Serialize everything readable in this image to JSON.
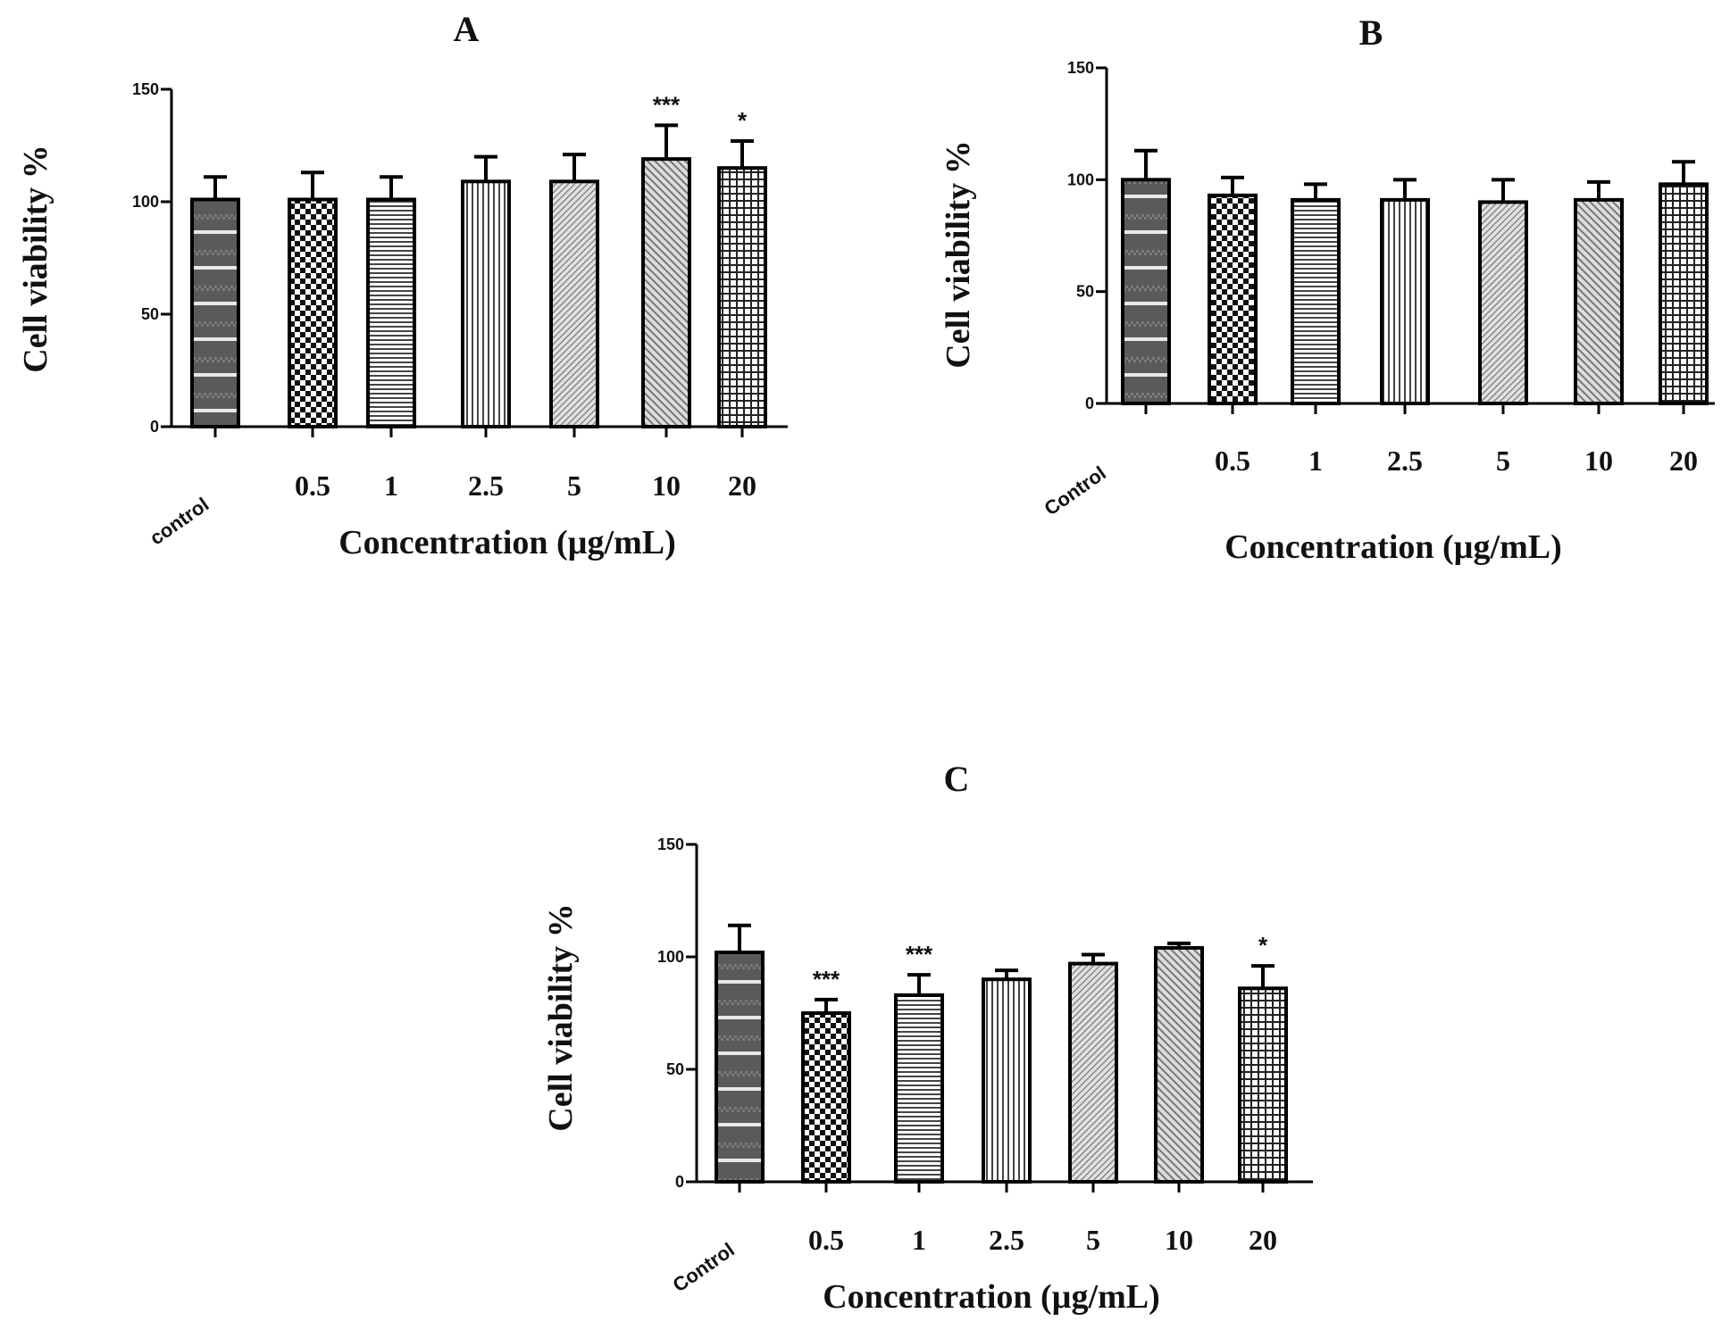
{
  "chart_data": [
    {
      "panel": "A",
      "type": "bar",
      "title": "A",
      "xlabel": "Concentration (µg/mL)",
      "ylabel": "Cell viability %",
      "ylim": [
        0,
        150
      ],
      "yticks": [
        "0",
        "50",
        "100",
        "150"
      ],
      "categories": [
        "control",
        "0.5",
        "1",
        "2.5",
        "5",
        "10",
        "20"
      ],
      "values": [
        101,
        101,
        101,
        109,
        109,
        119,
        115
      ],
      "errors": [
        10,
        12,
        10,
        11,
        12,
        15,
        12
      ],
      "significance": [
        "",
        "",
        "",
        "",
        "",
        "***",
        "*"
      ],
      "patterns": [
        "pat-control",
        "pat-checker",
        "pat-hlines",
        "pat-vlines",
        "pat-dfine",
        "pat-dcoarse",
        "pat-grid"
      ]
    },
    {
      "panel": "B",
      "type": "bar",
      "title": "B",
      "xlabel": "Concentration (µg/mL)",
      "ylabel": "Cell viability %",
      "ylim": [
        0,
        150
      ],
      "yticks": [
        "0",
        "50",
        "100",
        "150"
      ],
      "categories": [
        "Control",
        "0.5",
        "1",
        "2.5",
        "5",
        "10",
        "20"
      ],
      "values": [
        100,
        93,
        91,
        91,
        90,
        91,
        98
      ],
      "errors": [
        13,
        8,
        7,
        9,
        10,
        8,
        10
      ],
      "significance": [
        "",
        "",
        "",
        "",
        "",
        "",
        ""
      ],
      "patterns": [
        "pat-control",
        "pat-checker",
        "pat-hlines",
        "pat-vlines",
        "pat-dfine",
        "pat-dcoarse",
        "pat-grid"
      ]
    },
    {
      "panel": "C",
      "type": "bar",
      "title": "C",
      "xlabel": "Concentration (µg/mL)",
      "ylabel": "Cell viability %",
      "ylim": [
        0,
        150
      ],
      "yticks": [
        "0",
        "50",
        "100",
        "150"
      ],
      "categories": [
        "Control",
        "0.5",
        "1",
        "2.5",
        "5",
        "10",
        "20"
      ],
      "values": [
        102,
        75,
        83,
        90,
        97,
        104,
        86
      ],
      "errors": [
        12,
        6,
        9,
        4,
        4,
        2,
        10
      ],
      "significance": [
        "",
        "***",
        "***",
        "",
        "",
        "",
        "*"
      ],
      "patterns": [
        "pat-control",
        "pat-checker",
        "pat-hlines",
        "pat-vlines",
        "pat-dfine",
        "pat-dcoarse",
        "pat-grid"
      ]
    }
  ]
}
